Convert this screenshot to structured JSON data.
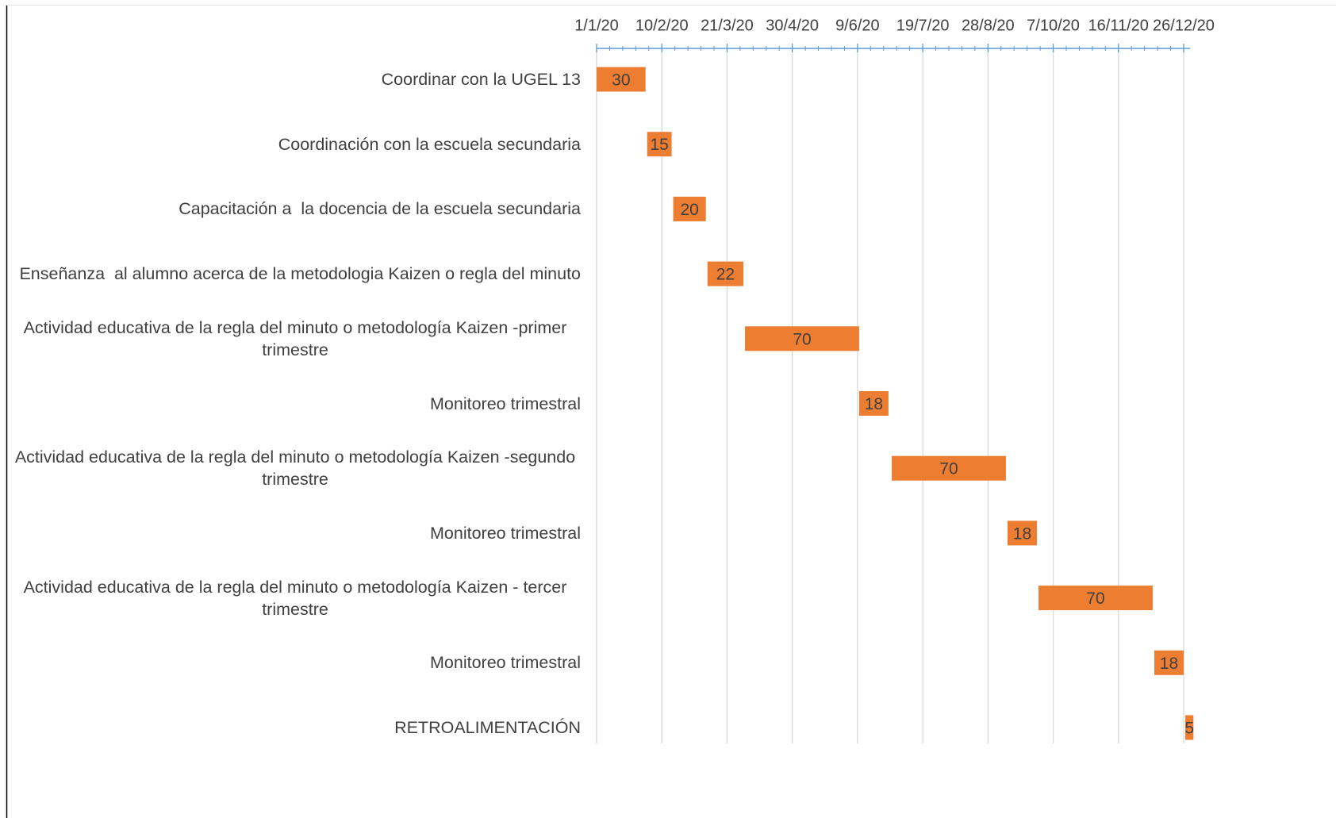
{
  "chart_data": {
    "type": "gantt",
    "categories": [
      "Coordinar con la UGEL 13",
      "Coordinación con la escuela secundaria",
      "Capacitación a  la docencia de la escuela secundaria",
      "Enseñanza  al alumno acerca de la metodologia Kaizen o regla del minuto",
      "Actividad educativa de la regla del minuto o metodología Kaizen -primer trimestre",
      "Monitoreo trimestral",
      "Actividad educativa de la regla del minuto o metodología Kaizen -segundo trimestre",
      "Monitoreo trimestral",
      "Actividad educativa de la regla del minuto o metodología Kaizen - tercer trimestre",
      "Monitoreo trimestral",
      "RETROALIMENTACIÓN"
    ],
    "start": [
      43831,
      43862,
      43878,
      43899,
      43922,
      43992,
      44012,
      44083,
      44102,
      44173,
      44192
    ],
    "duration": [
      30,
      15,
      20,
      22,
      70,
      18,
      70,
      18,
      70,
      18,
      5
    ],
    "color": "#ed7d31",
    "xlim": [
      43831,
      44195
    ],
    "xticks": [
      {
        "value": 43831,
        "label": "1/1/20"
      },
      {
        "value": 43871,
        "label": "10/2/20"
      },
      {
        "value": 43911,
        "label": "21/3/20"
      },
      {
        "value": 43951,
        "label": "30/4/20"
      },
      {
        "value": 43991,
        "label": "9/6/20"
      },
      {
        "value": 44031,
        "label": "19/7/20"
      },
      {
        "value": 44071,
        "label": "28/8/20"
      },
      {
        "value": 44111,
        "label": "7/10/20"
      },
      {
        "value": 44151,
        "label": "16/11/20"
      },
      {
        "value": 44191,
        "label": "26/12/20"
      }
    ],
    "grid": true
  }
}
